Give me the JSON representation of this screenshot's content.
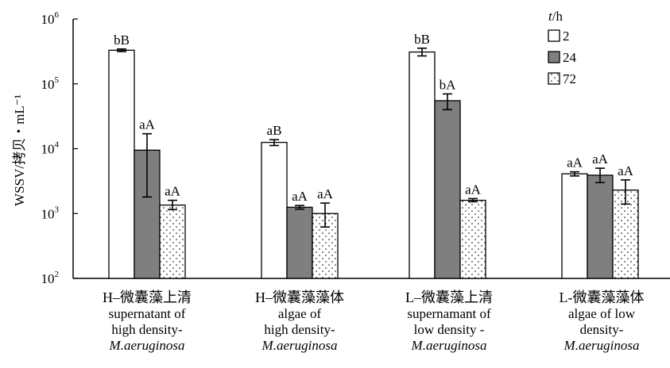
{
  "chart_data": {
    "type": "bar",
    "y_scale": "log",
    "ylim": [
      100,
      1000000
    ],
    "ylabel": "WSSV/拷贝・mL⁻¹",
    "y_tick_exponents": [
      2,
      3,
      4,
      5,
      6
    ],
    "y_tick_base": "10",
    "legend_title": "t/h",
    "legend_title_var": "t",
    "legend_title_unit": "/h",
    "legend_position": "top-right",
    "series": [
      {
        "name": "2",
        "fill": "#ffffff",
        "pattern": "none",
        "values": [
          330000,
          12500,
          310000,
          4100
        ],
        "err_low": [
          315000,
          11200,
          270000,
          3800
        ],
        "err_high": [
          345000,
          13800,
          355000,
          4400
        ],
        "labels": [
          "bB",
          "aB",
          "bB",
          "aA"
        ]
      },
      {
        "name": "24",
        "fill": "#7f7f7f",
        "pattern": "none",
        "values": [
          9500,
          1250,
          55000,
          3900
        ],
        "err_low": [
          1800,
          1170,
          40000,
          3000
        ],
        "err_high": [
          17000,
          1330,
          70000,
          5000
        ],
        "labels": [
          "aA",
          "aA",
          "bA",
          "aA"
        ]
      },
      {
        "name": "72",
        "fill": "#ffffff",
        "pattern": "dots",
        "values": [
          1350,
          1000,
          1600,
          2300
        ],
        "err_low": [
          1150,
          620,
          1520,
          1400
        ],
        "err_high": [
          1600,
          1450,
          1700,
          3300
        ],
        "labels": [
          "aA",
          "aA",
          "aA",
          "aA"
        ]
      }
    ],
    "categories": [
      {
        "cn": "H–微囊藻上清",
        "en1": "supernatant of",
        "en2": "high density-",
        "en3": "M.aeruginosa"
      },
      {
        "cn": "H–微囊藻藻体",
        "en1": "algae of",
        "en2": "high density-",
        "en3": "M.aeruginosa"
      },
      {
        "cn": "L–微囊藻上清",
        "en1": "supernamant of",
        "en2": "low density -",
        "en3": "M.aeruginosa"
      },
      {
        "cn": "L-微囊藻藻体",
        "en1": "algae of low",
        "en2": "density-",
        "en3": "M.aeruginosa"
      }
    ]
  }
}
